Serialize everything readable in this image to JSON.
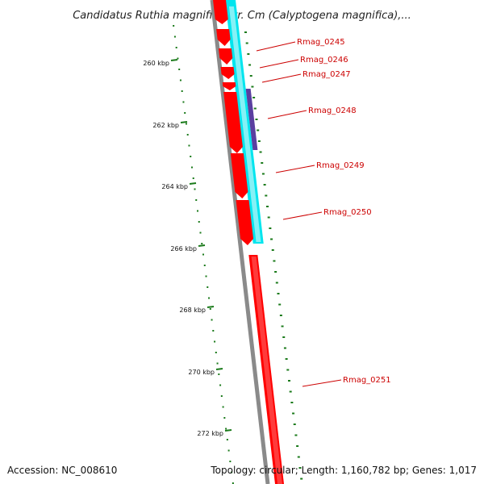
{
  "title": "Candidatus Ruthia magnifica str. Cm (Calyptogena magnifica),...",
  "footer": {
    "accession": "Accession: NC_008610",
    "summary": "Topology: circular; Length: 1,160,782 bp; Genes: 1,017"
  },
  "colors": {
    "forward_cds": "#ff0000",
    "forward_gene": "#ff6b6b",
    "reverse_cds": "#00e5ee",
    "reverse_gene": "#a6f4f8",
    "misc_feature": "#5a3fa0",
    "backbone": "#8a8a8a",
    "ticks": "#1a7a1a",
    "label": "#cc0000"
  },
  "ticks": [
    "260 kbp",
    "262 kbp",
    "264 kbp",
    "266 kbp",
    "268 kbp",
    "270 kbp",
    "272 kbp"
  ],
  "genes": [
    "Rmag_0245",
    "Rmag_0246",
    "Rmag_0247",
    "Rmag_0248",
    "Rmag_0249",
    "Rmag_0250",
    "Rmag_0251"
  ]
}
